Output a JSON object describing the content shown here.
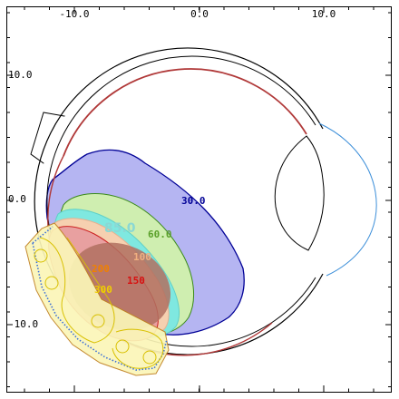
{
  "colors": {
    "background": "#ffffff",
    "frame": "#000000",
    "sclera_outer": "#000000",
    "retina_line": "#b03838",
    "cornea": "#3d8fd9",
    "iso_30": "#b5b5f2",
    "iso_30_edge": "#000096",
    "iso_60": "#cfeeb0",
    "iso_60_edge": "#3a8a1a",
    "iso_85": "#7fe8e0",
    "iso_100": "#f6d0b0",
    "iso_150": "#e8a0a0",
    "iso_200": "#b07060",
    "iso_300": "#fbf6b8",
    "plaque_outline": "#c08020",
    "seed_outline": "#d8c000",
    "seed_rim_dots": "#3a6fd8"
  },
  "axes": {
    "x_ticks": [
      "-10.0",
      "0.0",
      "10.0"
    ],
    "y_ticks": [
      "10.0",
      "0.0",
      "-10.0"
    ]
  },
  "isodose_labels": [
    {
      "text": "30.0",
      "color": "#000096"
    },
    {
      "text": "60.0",
      "color": "#5aa02a"
    },
    {
      "text": "85.0",
      "color": "#8ad8d4"
    },
    {
      "text": "100",
      "color": "#f0b080"
    },
    {
      "text": "150",
      "color": "#d81010"
    },
    {
      "text": "200",
      "color": "#f08000"
    },
    {
      "text": "300",
      "color": "#f0d000"
    }
  ]
}
